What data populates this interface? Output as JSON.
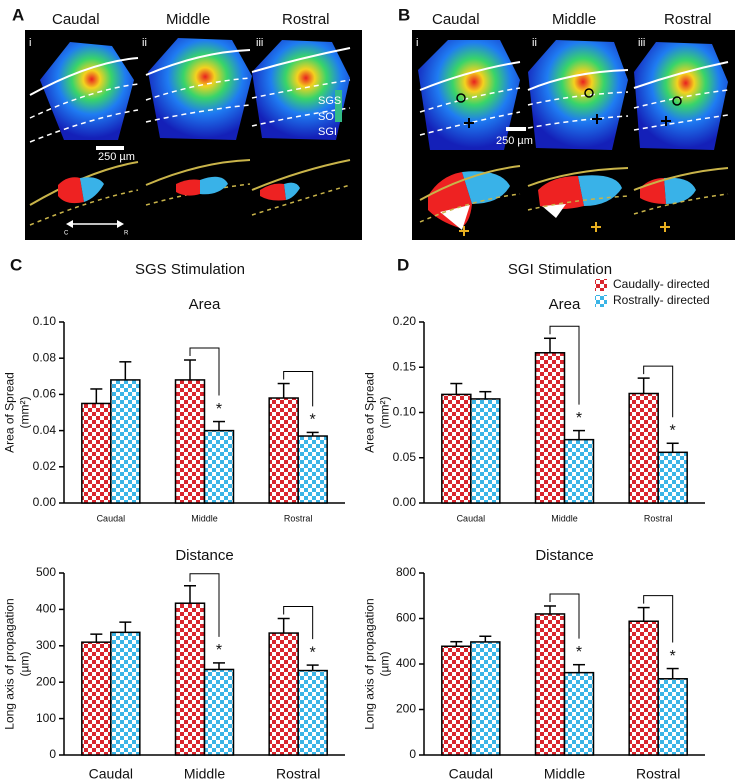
{
  "figure": {
    "panels": [
      {
        "letter": "A",
        "columns": [
          "Caudal",
          "Middle",
          "Rostral"
        ],
        "numerals": [
          "i",
          "ii",
          "iii"
        ],
        "layers": [
          "SGS",
          "SO",
          "SGI"
        ],
        "scale": "250 µm",
        "axis": [
          "C",
          "R"
        ]
      },
      {
        "letter": "B",
        "columns": [
          "Caudal",
          "Middle",
          "Rostral"
        ],
        "numerals": [
          "i",
          "ii",
          "iii"
        ],
        "scale": "250 µm"
      }
    ],
    "groups": [
      {
        "letter": "C",
        "title": "SGS Stimulation"
      },
      {
        "letter": "D",
        "title": "SGI Stimulation"
      }
    ]
  },
  "chart_data": [
    {
      "type": "bar",
      "title": "Area",
      "y_label": [
        "Area of Spread",
        "(mm²)"
      ],
      "categories": [
        "Caudal",
        "Middle",
        "Rostral"
      ],
      "series": [
        {
          "color": "#d9262e",
          "values": [
            0.055,
            0.068,
            0.058
          ],
          "errors": [
            0.008,
            0.011,
            0.008
          ]
        },
        {
          "color": "#3bb4e6",
          "values": [
            0.068,
            0.04,
            0.037
          ],
          "errors": [
            0.01,
            0.005,
            0.002
          ]
        }
      ],
      "significance": [
        null,
        "*",
        "*"
      ],
      "ylim": [
        0,
        0.1
      ],
      "yticks": [
        {
          "value": 0,
          "label": "0.00"
        },
        {
          "value": 0.02,
          "label": "0.02"
        },
        {
          "value": 0.04,
          "label": "0.04"
        },
        {
          "value": 0.06,
          "label": "0.06"
        },
        {
          "value": 0.08,
          "label": "0.08"
        },
        {
          "value": 0.1,
          "label": "0.10"
        }
      ]
    },
    {
      "type": "bar",
      "title": "Distance",
      "y_label": [
        "Long axis of propagation",
        "(µm)"
      ],
      "categories": [
        "Caudal",
        "Middle",
        "Rostral"
      ],
      "series": [
        {
          "color": "#d9262e",
          "values": [
            310,
            417,
            335
          ],
          "errors": [
            22,
            48,
            40
          ]
        },
        {
          "color": "#3bb4e6",
          "values": [
            337,
            235,
            232
          ],
          "errors": [
            28,
            18,
            15
          ]
        }
      ],
      "significance": [
        null,
        "*",
        "*"
      ],
      "ylim": [
        0,
        500
      ],
      "yticks": [
        0,
        100,
        200,
        300,
        400,
        500
      ]
    },
    {
      "type": "bar",
      "title": "Area",
      "y_label": [
        "Area of Spread",
        "(mm²)"
      ],
      "categories": [
        "Caudal",
        "Middle",
        "Rostral"
      ],
      "series": [
        {
          "name": "Caudally- directed",
          "color": "#d9262e",
          "values": [
            0.12,
            0.166,
            0.121
          ],
          "errors": [
            0.012,
            0.016,
            0.017
          ]
        },
        {
          "name": "Rostrally- directed",
          "color": "#3bb4e6",
          "values": [
            0.115,
            0.07,
            0.056
          ],
          "errors": [
            0.008,
            0.01,
            0.01
          ]
        }
      ],
      "significance": [
        null,
        "*",
        "*"
      ],
      "legend": "upper right",
      "ylim": [
        0,
        0.2
      ],
      "yticks": [
        {
          "value": 0,
          "label": "0.00"
        },
        {
          "value": 0.05,
          "label": "0.05"
        },
        {
          "value": 0.1,
          "label": "0.10"
        },
        {
          "value": 0.15,
          "label": "0.15"
        },
        {
          "value": 0.2,
          "label": "0.20"
        }
      ]
    },
    {
      "type": "bar",
      "title": "Distance",
      "y_label": [
        "Long axis of propagation",
        "(µm)"
      ],
      "categories": [
        "Caudal",
        "Middle",
        "Rostral"
      ],
      "series": [
        {
          "color": "#d9262e",
          "values": [
            478,
            620,
            588
          ],
          "errors": [
            20,
            35,
            60
          ]
        },
        {
          "color": "#3bb4e6",
          "values": [
            497,
            362,
            335
          ],
          "errors": [
            25,
            35,
            45
          ]
        }
      ],
      "significance": [
        null,
        "*",
        "*"
      ],
      "ylim": [
        0,
        800
      ],
      "yticks": [
        0,
        200,
        400,
        600,
        800
      ]
    }
  ]
}
